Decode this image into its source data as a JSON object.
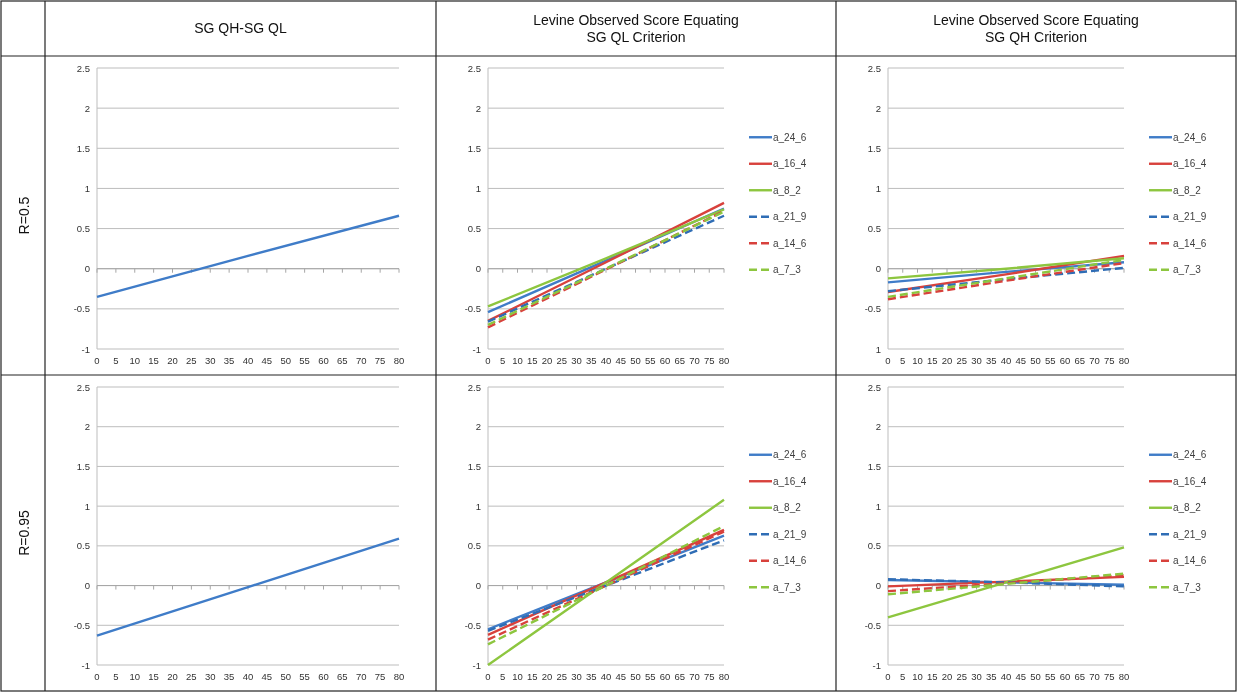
{
  "chart_data": [
    {
      "type": "line",
      "title": "SG QH-SG QL",
      "ylabel": "R=0.5",
      "x": [
        0,
        40,
        80
      ],
      "values": [
        -0.35,
        0.16,
        0.66
      ],
      "color": "#3f7cc8",
      "xlim": [
        0,
        80
      ],
      "xticks": [
        0,
        5,
        10,
        15,
        20,
        25,
        30,
        35,
        40,
        45,
        50,
        55,
        60,
        65,
        70,
        75,
        80
      ],
      "ylim": [
        -1,
        2.5
      ],
      "yticks": [
        -1,
        -0.5,
        0,
        0.5,
        1,
        1.5,
        2,
        2.5
      ],
      "grid": "y"
    },
    {
      "type": "line",
      "title": "Levine Observed Score Equating\nSG QL Criterion",
      "x": [
        0,
        40,
        80
      ],
      "xlim": [
        0,
        80
      ],
      "xticks": [
        0,
        5,
        10,
        15,
        20,
        25,
        30,
        35,
        40,
        45,
        50,
        55,
        60,
        65,
        70,
        75,
        80
      ],
      "ylim": [
        -1,
        2.5
      ],
      "yticks": [
        -1,
        -0.5,
        0,
        0.5,
        1,
        1.5,
        2,
        2.5
      ],
      "grid": "y",
      "legend": "right",
      "series": [
        {
          "name": "a_24_6",
          "color": "#3f7cc8",
          "line_style": "solid",
          "values": [
            -0.54,
            0.1,
            0.75
          ]
        },
        {
          "name": "a_16_4",
          "color": "#d8413c",
          "line_style": "solid",
          "values": [
            -0.65,
            0.08,
            0.82
          ]
        },
        {
          "name": "a_8_2",
          "color": "#8dc63f",
          "line_style": "solid",
          "values": [
            -0.47,
            0.13,
            0.74
          ]
        },
        {
          "name": "a_21_9",
          "color": "#2f6db5",
          "line_style": "dashed",
          "values": [
            -0.66,
            0,
            0.66
          ]
        },
        {
          "name": "a_14_6",
          "color": "#d8413c",
          "line_style": "dashed",
          "values": [
            -0.73,
            -0.01,
            0.72
          ]
        },
        {
          "name": "a_7_3",
          "color": "#8dc63f",
          "line_style": "dashed",
          "values": [
            -0.7,
            0,
            0.71
          ]
        }
      ]
    },
    {
      "type": "line",
      "title": "Levine Observed Score Equating\nSG QH Criterion",
      "x": [
        0,
        40,
        80
      ],
      "xlim": [
        0,
        80
      ],
      "xticks": [
        0,
        5,
        10,
        15,
        20,
        25,
        30,
        35,
        40,
        45,
        50,
        55,
        60,
        65,
        70,
        75,
        80
      ],
      "ylim": [
        -1,
        2.5
      ],
      "yticks": [
        {
          "value": -1,
          "label": "1"
        },
        -0.5,
        0,
        0.5,
        1,
        1.5,
        2,
        2.5
      ],
      "grid": "y",
      "legend": "right",
      "series": [
        {
          "name": "a_24_6",
          "color": "#3f7cc8",
          "line_style": "solid",
          "values": [
            -0.17,
            -0.04,
            0.08
          ]
        },
        {
          "name": "a_16_4",
          "color": "#d8413c",
          "line_style": "solid",
          "values": [
            -0.29,
            -0.07,
            0.16
          ]
        },
        {
          "name": "a_8_2",
          "color": "#8dc63f",
          "line_style": "solid",
          "values": [
            -0.12,
            0,
            0.13
          ]
        },
        {
          "name": "a_21_9",
          "color": "#2f6db5",
          "line_style": "dashed",
          "values": [
            -0.28,
            -0.13,
            0.01
          ]
        },
        {
          "name": "a_14_6",
          "color": "#d8413c",
          "line_style": "dashed",
          "values": [
            -0.38,
            -0.15,
            0.07
          ]
        },
        {
          "name": "a_7_3",
          "color": "#8dc63f",
          "line_style": "dashed",
          "values": [
            -0.35,
            -0.12,
            0.11
          ]
        }
      ]
    },
    {
      "type": "line",
      "ylabel": "R=0.95",
      "x": [
        0,
        40,
        80
      ],
      "values": [
        -0.63,
        -0.02,
        0.59
      ],
      "color": "#3f7cc8",
      "xlim": [
        0,
        80
      ],
      "xticks": [
        0,
        5,
        10,
        15,
        20,
        25,
        30,
        35,
        40,
        45,
        50,
        55,
        60,
        65,
        70,
        75,
        80
      ],
      "ylim": [
        -1,
        2.5
      ],
      "yticks": [
        -1,
        -0.5,
        0,
        0.5,
        1,
        1.5,
        2,
        2.5
      ],
      "grid": "y"
    },
    {
      "type": "line",
      "x": [
        0,
        40,
        80
      ],
      "xlim": [
        0,
        80
      ],
      "xticks": [
        0,
        5,
        10,
        15,
        20,
        25,
        30,
        35,
        40,
        45,
        50,
        55,
        60,
        65,
        70,
        75,
        80
      ],
      "ylim": [
        -1,
        2.5
      ],
      "yticks": [
        -1,
        -0.5,
        0,
        0.5,
        1,
        1.5,
        2,
        2.5
      ],
      "grid": "y",
      "legend": "right",
      "series": [
        {
          "name": "a_24_6",
          "color": "#3f7cc8",
          "line_style": "solid",
          "values": [
            -0.55,
            0.04,
            0.63
          ]
        },
        {
          "name": "a_16_4",
          "color": "#d8413c",
          "line_style": "solid",
          "values": [
            -0.62,
            0.04,
            0.7
          ]
        },
        {
          "name": "a_8_2",
          "color": "#8dc63f",
          "line_style": "solid",
          "values": [
            -1,
            0.04,
            1.08
          ]
        },
        {
          "name": "a_21_9",
          "color": "#2f6db5",
          "line_style": "dashed",
          "values": [
            -0.57,
            0,
            0.57
          ]
        },
        {
          "name": "a_14_6",
          "color": "#d8413c",
          "line_style": "dashed",
          "values": [
            -0.68,
            0,
            0.68
          ]
        },
        {
          "name": "a_7_3",
          "color": "#8dc63f",
          "line_style": "dashed",
          "values": [
            -0.74,
            0,
            0.75
          ]
        }
      ]
    },
    {
      "type": "line",
      "x": [
        0,
        40,
        80
      ],
      "xlim": [
        0,
        80
      ],
      "xticks": [
        0,
        5,
        10,
        15,
        20,
        25,
        30,
        35,
        40,
        45,
        50,
        55,
        60,
        65,
        70,
        75,
        80
      ],
      "ylim": [
        -1,
        2.5
      ],
      "yticks": [
        -1,
        -0.5,
        0,
        0.5,
        1,
        1.5,
        2,
        2.5
      ],
      "grid": "y",
      "legend": "right",
      "series": [
        {
          "name": "a_24_6",
          "color": "#3f7cc8",
          "line_style": "solid",
          "values": [
            0.07,
            0.04,
            0.01
          ]
        },
        {
          "name": "a_16_4",
          "color": "#d8413c",
          "line_style": "solid",
          "values": [
            -0.01,
            0.05,
            0.11
          ]
        },
        {
          "name": "a_8_2",
          "color": "#8dc63f",
          "line_style": "solid",
          "values": [
            -0.4,
            0.04,
            0.48
          ]
        },
        {
          "name": "a_21_9",
          "color": "#2f6db5",
          "line_style": "dashed",
          "values": [
            0.08,
            0.04,
            -0.01
          ]
        },
        {
          "name": "a_14_6",
          "color": "#d8413c",
          "line_style": "dashed",
          "values": [
            -0.07,
            0.03,
            0.13
          ]
        },
        {
          "name": "a_7_3",
          "color": "#8dc63f",
          "line_style": "dashed",
          "values": [
            -0.11,
            0.02,
            0.15
          ]
        }
      ]
    }
  ]
}
